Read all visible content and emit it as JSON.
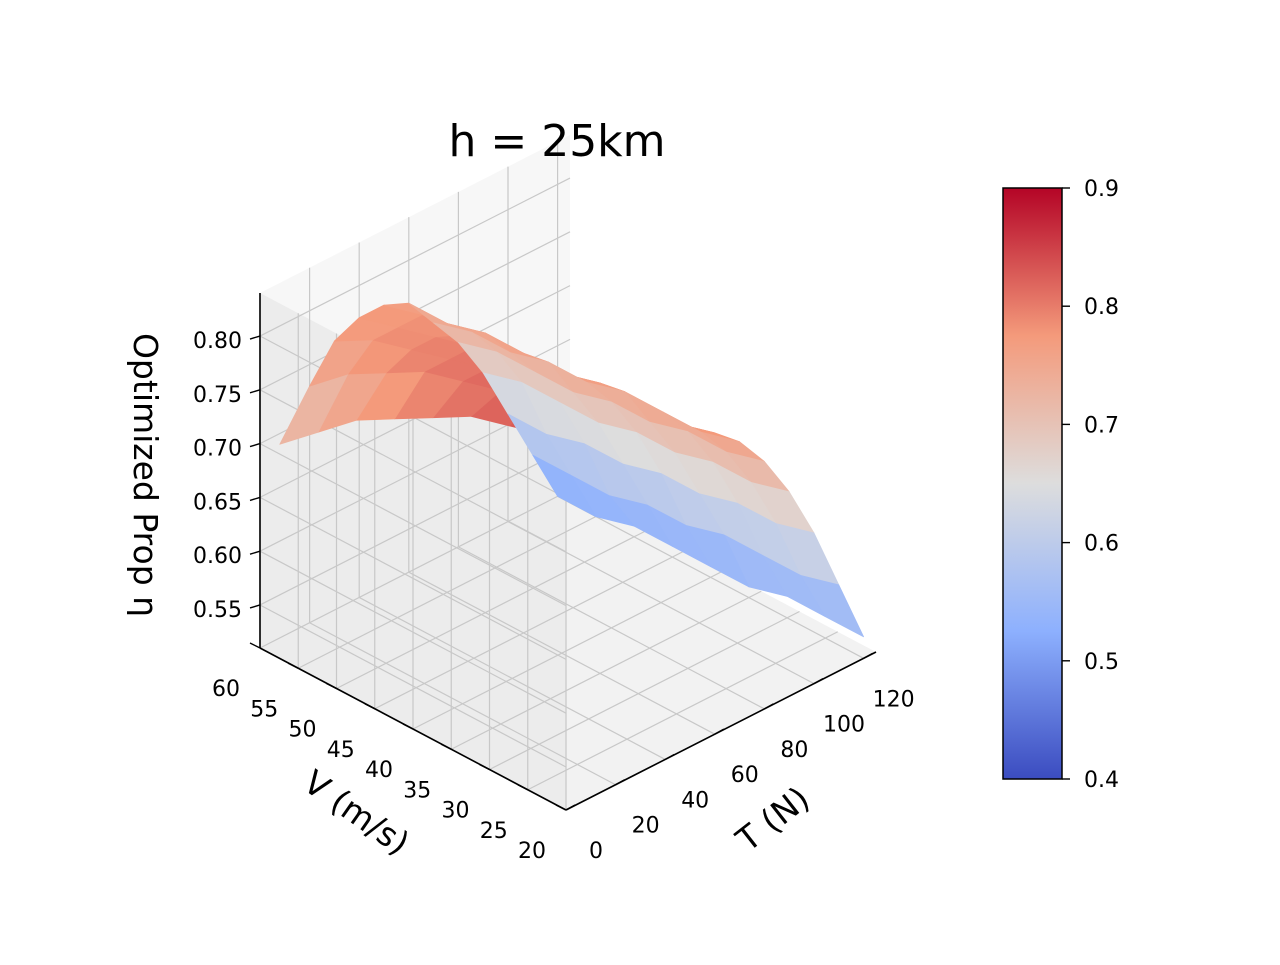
{
  "chart_data": {
    "type": "surface",
    "title": "h = 25km",
    "xlabel": "T (N)",
    "ylabel": "V (m/s)",
    "zlabel": "Optimized Prop η",
    "colormap": "coolwarm",
    "x_ticks": [
      "0",
      "20",
      "40",
      "60",
      "80",
      "100",
      "120"
    ],
    "y_ticks": [
      "20",
      "25",
      "30",
      "35",
      "40",
      "45",
      "50",
      "55",
      "60"
    ],
    "z_ticks": [
      "0.55",
      "0.60",
      "0.65",
      "0.70",
      "0.75",
      "0.80"
    ],
    "xlim": [
      0,
      125
    ],
    "ylim": [
      20,
      60
    ],
    "zlim": [
      0.51,
      0.84
    ],
    "colorbar": {
      "range": [
        0.4,
        0.9
      ],
      "ticks": [
        "0.4",
        "0.5",
        "0.6",
        "0.7",
        "0.8",
        "0.9"
      ]
    },
    "grid": true,
    "surface": {
      "T": [
        8,
        20,
        30,
        40,
        50,
        60,
        70,
        80,
        90,
        100,
        110,
        120
      ],
      "V": [
        20,
        25,
        30,
        35,
        40,
        45,
        50,
        55,
        60
      ],
      "eta": [
        [
          0.83,
          0.83,
          0.82,
          0.81,
          0.8,
          0.79,
          0.77,
          0.74,
          0.7,
          0.65,
          0.59,
          0.53
        ],
        [
          0.83,
          0.83,
          0.82,
          0.81,
          0.8,
          0.78,
          0.76,
          0.73,
          0.69,
          0.64,
          0.58,
          0.53
        ],
        [
          0.82,
          0.83,
          0.82,
          0.81,
          0.8,
          0.78,
          0.76,
          0.73,
          0.69,
          0.64,
          0.58,
          0.53
        ],
        [
          0.81,
          0.82,
          0.82,
          0.81,
          0.79,
          0.78,
          0.76,
          0.72,
          0.68,
          0.63,
          0.58,
          0.52
        ],
        [
          0.79,
          0.81,
          0.81,
          0.81,
          0.79,
          0.77,
          0.75,
          0.72,
          0.68,
          0.63,
          0.57,
          0.52
        ],
        [
          0.77,
          0.8,
          0.8,
          0.8,
          0.79,
          0.77,
          0.75,
          0.71,
          0.67,
          0.62,
          0.57,
          0.52
        ],
        [
          0.75,
          0.78,
          0.79,
          0.79,
          0.78,
          0.77,
          0.74,
          0.71,
          0.67,
          0.62,
          0.56,
          0.52
        ],
        [
          0.72,
          0.76,
          0.78,
          0.78,
          0.78,
          0.76,
          0.74,
          0.71,
          0.67,
          0.61,
          0.56,
          0.51
        ],
        [
          0.69,
          0.73,
          0.76,
          0.77,
          0.77,
          0.76,
          0.73,
          0.7,
          0.66,
          0.61,
          0.56,
          0.51
        ]
      ]
    }
  }
}
